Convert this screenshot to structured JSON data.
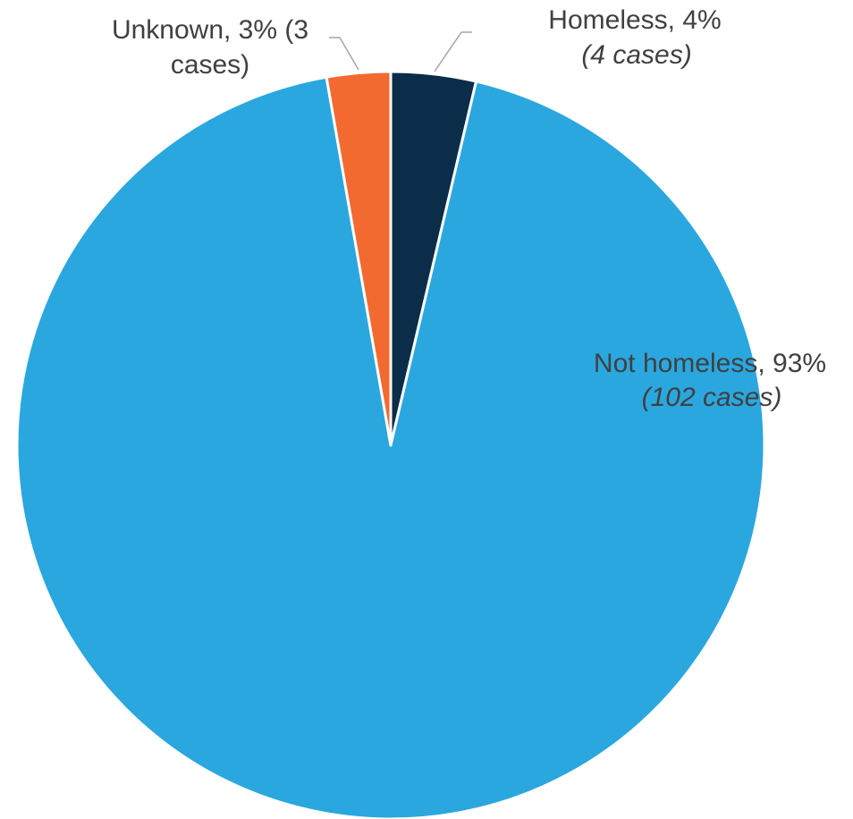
{
  "chart_data": {
    "type": "pie",
    "start_angle_deg": 0,
    "direction": "clockwise",
    "slices": [
      {
        "label": "Homeless, 4%",
        "sublabel": "(4 cases)",
        "value": 4,
        "percent": 4,
        "color": "#0B2D4A"
      },
      {
        "label": "Not homeless, 93%",
        "sublabel": "(102 cases)",
        "value": 102,
        "percent": 93,
        "color": "#2AA7DF"
      },
      {
        "label": "Unknown, 3% (3",
        "sublabel": "cases)",
        "value": 3,
        "percent": 3,
        "color": "#F26A30"
      }
    ]
  },
  "leader_line_color": "#A6A6A6",
  "separator_color": "#FFFFFF"
}
